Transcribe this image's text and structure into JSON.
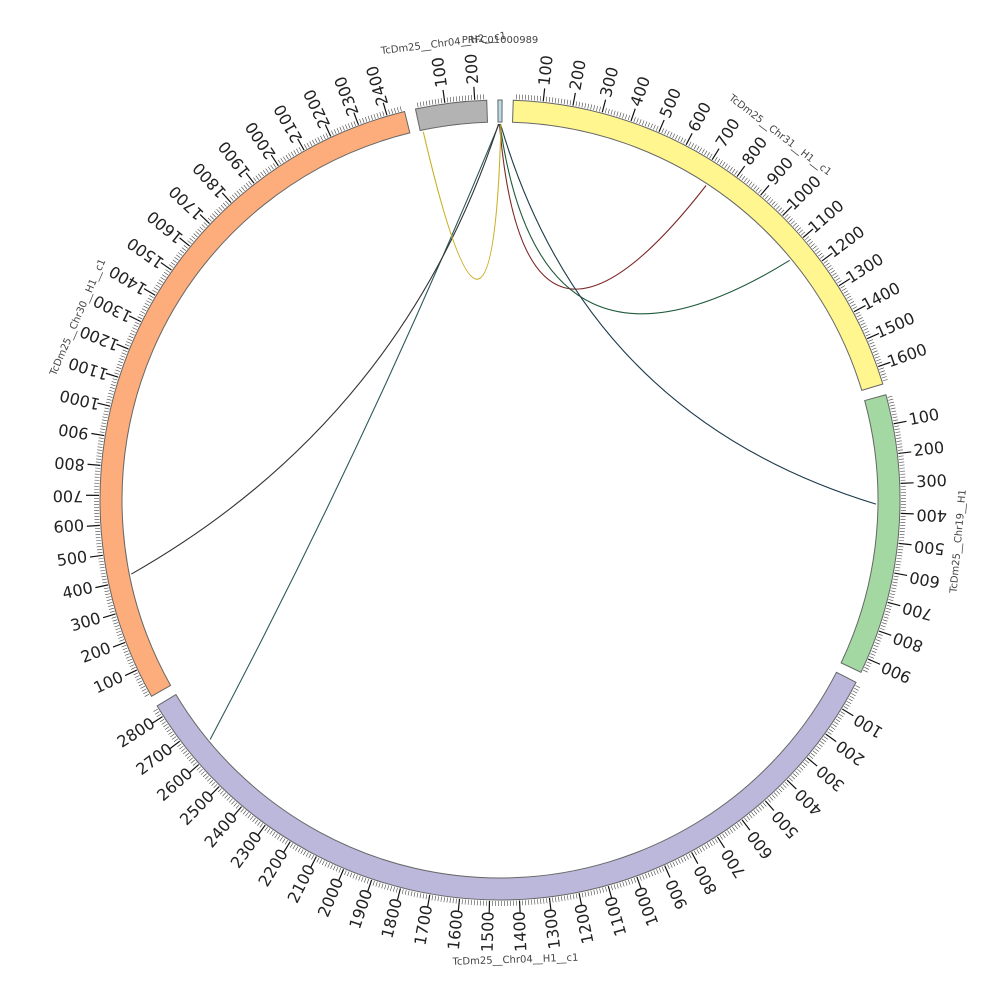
{
  "title": "",
  "segments": [
    {
      "id": "pfc",
      "name": "PRFC01000989",
      "length": 8,
      "color": "#b8dde8",
      "label_step": 0
    },
    {
      "id": "chr31",
      "name": "TcDm25__Chr31__H1__c1",
      "length": 1660,
      "color": "#fff68f",
      "label_step": 100
    },
    {
      "id": "chr19",
      "name": "TcDm25__Chr19__H1",
      "length": 950,
      "color": "#a3d8a3",
      "label_step": 100
    },
    {
      "id": "chr04",
      "name": "TcDm25__Chr04__H1__c1",
      "length": 2840,
      "color": "#bcb8dc",
      "label_step": 100
    },
    {
      "id": "chr30",
      "name": "TcDm25__Chr30__H1__c1",
      "length": 2460,
      "color": "#fcad7b",
      "label_step": 100
    },
    {
      "id": "chr04b",
      "name": "TcDm25__Chr04__H2__c1",
      "length": 240,
      "color": "#b3b3b3",
      "label_step": 100
    }
  ],
  "links": [
    {
      "from": "pfc",
      "from_pos": 3,
      "to": "chr31",
      "to_pos": 730,
      "color": "#7a2828"
    },
    {
      "from": "pfc",
      "from_pos": 4,
      "to": "chr31",
      "to_pos": 1130,
      "color": "#1f5a3a"
    },
    {
      "from": "pfc",
      "from_pos": 5,
      "to": "chr19",
      "to_pos": 370,
      "color": "#1c3a4a"
    },
    {
      "from": "pfc",
      "from_pos": 2,
      "to": "chr04",
      "to_pos": 2640,
      "color": "#2c5a5a"
    },
    {
      "from": "pfc",
      "from_pos": 1,
      "to": "chr30",
      "to_pos": 420,
      "color": "#333333"
    },
    {
      "from": "pfc",
      "from_pos": 6,
      "to": "chr04b",
      "to_pos": 10,
      "color": "#c9b024"
    }
  ]
}
